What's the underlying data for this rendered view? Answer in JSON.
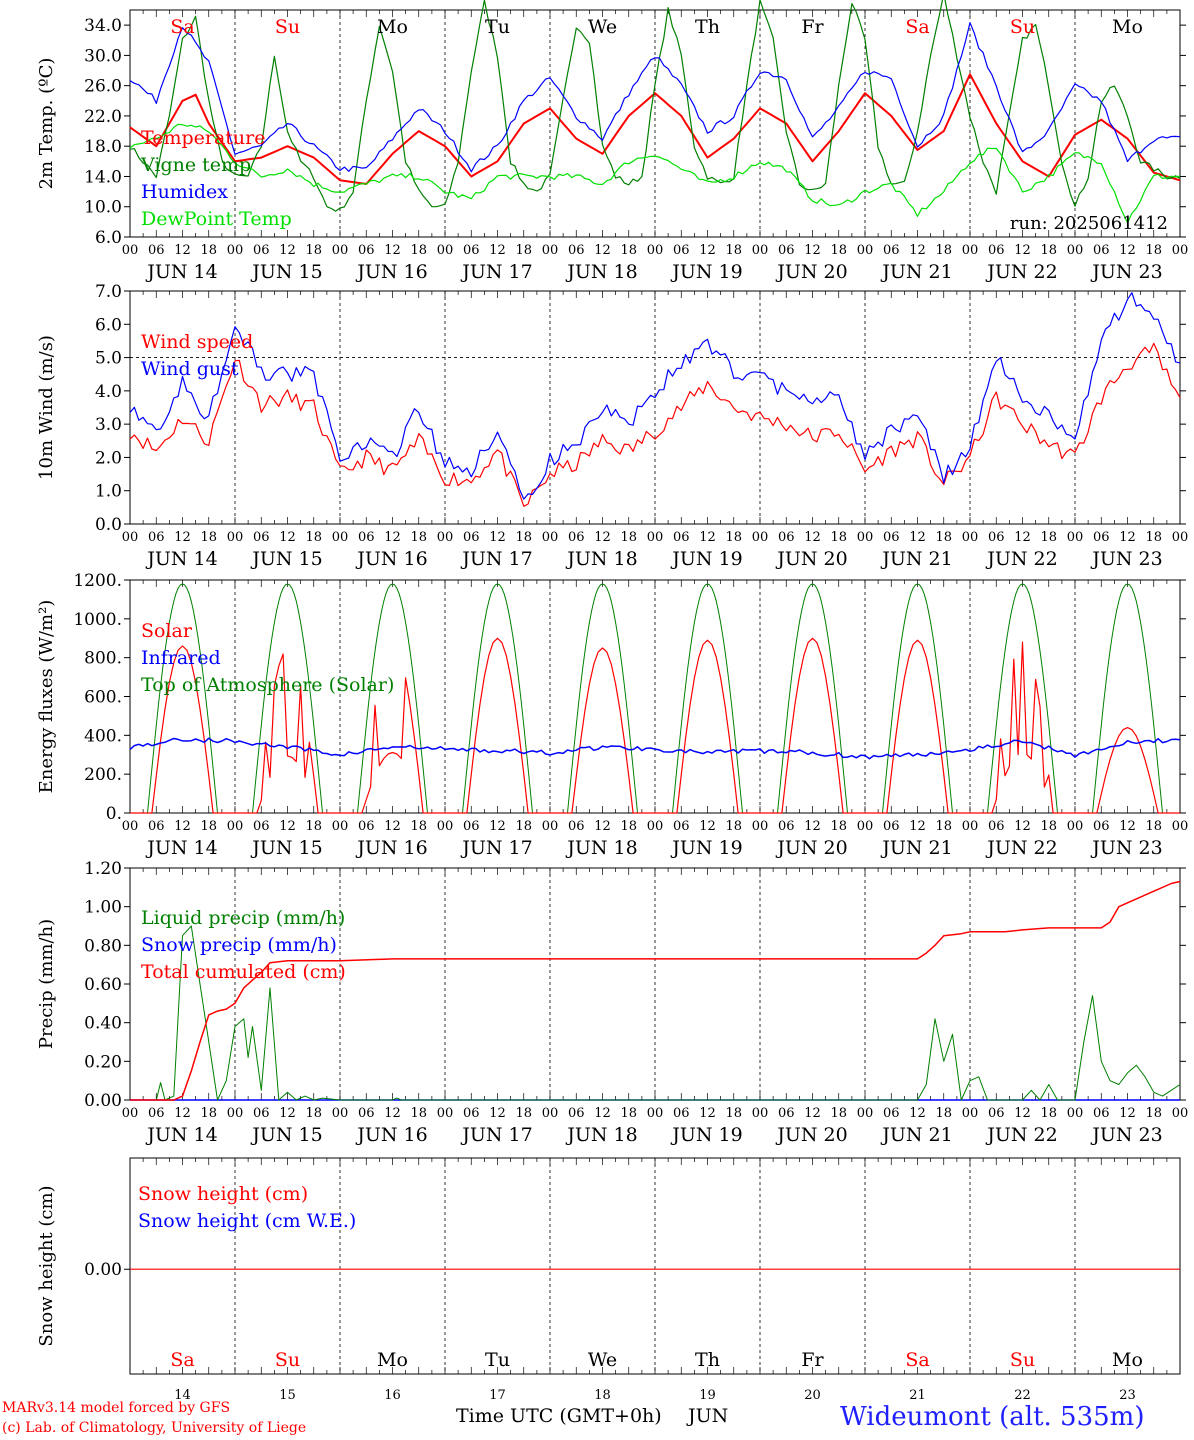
{
  "footer": {
    "credit_model": "MARv3.14 model forced by GFS",
    "credit_lab": "(c) Lab. of Climatology, University of Liege",
    "xaxis_title": "Time UTC (GMT+0h)",
    "month": "JUN",
    "station": "Wideumont (alt. 535m)"
  },
  "run_label": "run: 2025061412",
  "colors": {
    "red": "#ff0000",
    "green": "#008000",
    "blue": "#0000ff",
    "lime": "#00e000",
    "weekend": "#ff0000"
  },
  "days": [
    {
      "abbr": "Sa",
      "date": "JUN 14",
      "num": "14",
      "weekend": true
    },
    {
      "abbr": "Su",
      "date": "JUN 15",
      "num": "15",
      "weekend": true
    },
    {
      "abbr": "Mo",
      "date": "JUN 16",
      "num": "16",
      "weekend": false
    },
    {
      "abbr": "Tu",
      "date": "JUN 17",
      "num": "17",
      "weekend": false
    },
    {
      "abbr": "We",
      "date": "JUN 18",
      "num": "18",
      "weekend": false
    },
    {
      "abbr": "Th",
      "date": "JUN 19",
      "num": "19",
      "weekend": false
    },
    {
      "abbr": "Fr",
      "date": "JUN 20",
      "num": "20",
      "weekend": false
    },
    {
      "abbr": "Sa",
      "date": "JUN 21",
      "num": "21",
      "weekend": true
    },
    {
      "abbr": "Su",
      "date": "JUN 22",
      "num": "22",
      "weekend": true
    },
    {
      "abbr": "Mo",
      "date": "JUN 23",
      "num": "23",
      "weekend": false
    }
  ],
  "hour_ticks": [
    "00",
    "06",
    "12",
    "18"
  ],
  "chart_data": [
    {
      "type": "line",
      "ylabel": "2m Temp. (ºC)",
      "ylim": [
        6,
        36
      ],
      "yticks": [
        "6.0",
        "10.0",
        "14.0",
        "18.0",
        "22.0",
        "26.0",
        "30.0",
        "34.0"
      ],
      "x_unit": "hours since JUN 14 00 UTC",
      "series": [
        {
          "name": "Temperature",
          "color": "#ff0000",
          "width": 2,
          "x": [
            0,
            6,
            12,
            15,
            18,
            24,
            30,
            36,
            42,
            48,
            54,
            60,
            66,
            72,
            78,
            84,
            90,
            96,
            102,
            108,
            114,
            120,
            126,
            132,
            138,
            144,
            150,
            156,
            162,
            168,
            174,
            180,
            186,
            192,
            198,
            204,
            210,
            216,
            222,
            228,
            234,
            240
          ],
          "y": [
            20.5,
            18,
            24,
            24.8,
            21,
            16,
            16.5,
            18,
            16.5,
            13.5,
            13,
            17,
            20,
            18,
            14,
            16,
            21,
            23,
            19,
            17,
            22,
            25,
            22,
            16.5,
            19,
            23,
            21,
            16,
            20,
            25,
            22,
            17.5,
            20,
            27.5,
            21,
            16,
            14,
            19.5,
            21.5,
            19,
            14.5,
            13.5
          ]
        },
        {
          "name": "Vigne temp",
          "color": "#008000",
          "width": 1.2,
          "x": [
            0,
            3,
            6,
            9,
            12,
            15,
            18,
            21,
            24,
            27,
            30,
            33,
            36,
            39,
            42,
            45,
            48,
            51,
            54,
            57,
            60,
            63,
            66,
            69,
            72,
            75,
            78,
            81,
            84,
            87,
            90,
            93,
            96,
            99,
            102,
            105,
            108,
            111,
            114,
            117,
            120,
            123,
            126,
            129,
            132,
            135,
            138,
            141,
            144,
            147,
            150,
            153,
            156,
            159,
            162,
            165,
            168,
            171,
            174,
            177,
            180,
            183,
            186,
            189,
            192,
            195,
            198,
            201,
            204,
            207,
            210,
            213,
            216,
            219,
            222,
            225,
            228,
            231,
            234,
            237,
            240
          ],
          "y": [
            18,
            16,
            14,
            22,
            32,
            35,
            24,
            16,
            14,
            14,
            18,
            30,
            20,
            16,
            14,
            10,
            9.5,
            12,
            24,
            34,
            28,
            16,
            12,
            10,
            10,
            16,
            28,
            37,
            30,
            16,
            13,
            12,
            14,
            24,
            34,
            32,
            18,
            14,
            13,
            14,
            26,
            36,
            30,
            18,
            14,
            13,
            14,
            26,
            37,
            32,
            20,
            13,
            12,
            13,
            26,
            37,
            32,
            18,
            13,
            13,
            20,
            30,
            38,
            30,
            22,
            16,
            12,
            22,
            32,
            34,
            26,
            16,
            10,
            14,
            24,
            26,
            22,
            16,
            15,
            14,
            14
          ]
        },
        {
          "name": "Humidex",
          "color": "#0000ff",
          "width": 1.2,
          "x": [
            0,
            6,
            12,
            18,
            24,
            30,
            36,
            42,
            48,
            54,
            60,
            66,
            72,
            78,
            84,
            90,
            96,
            102,
            108,
            114,
            120,
            126,
            132,
            138,
            144,
            150,
            156,
            162,
            168,
            174,
            180,
            186,
            192,
            198,
            204,
            210,
            216,
            222,
            228,
            234,
            240
          ],
          "y": [
            27,
            24,
            34,
            29,
            17,
            18,
            21,
            18,
            15,
            15,
            19,
            23,
            20,
            15,
            18,
            24,
            27,
            22,
            19,
            25,
            30,
            26,
            20,
            22,
            28,
            27,
            19,
            23,
            28,
            27,
            18,
            22,
            34,
            26,
            17,
            20,
            26,
            24,
            16,
            19,
            19
          ]
        },
        {
          "name": "DewPoint Temp",
          "color": "#00e000",
          "width": 1.2,
          "x": [
            0,
            6,
            12,
            18,
            24,
            30,
            36,
            42,
            48,
            54,
            60,
            66,
            72,
            78,
            84,
            90,
            96,
            102,
            108,
            114,
            120,
            126,
            132,
            138,
            144,
            150,
            156,
            162,
            168,
            174,
            180,
            186,
            192,
            198,
            204,
            210,
            216,
            222,
            228,
            234,
            240
          ],
          "y": [
            18,
            19,
            21,
            20,
            16,
            14,
            15,
            13,
            12,
            13,
            14,
            14,
            12,
            11,
            14,
            14,
            14,
            14,
            13,
            16,
            17,
            15,
            13,
            14,
            16,
            15,
            11,
            10,
            12,
            13,
            9,
            12,
            16,
            18,
            12,
            14,
            17,
            16,
            8,
            14,
            14
          ]
        }
      ],
      "legend": [
        "Temperature",
        "Vigne temp",
        "Humidex",
        "DewPoint Temp"
      ]
    },
    {
      "type": "line",
      "ylabel": "10m Wind (m/s)",
      "ylim": [
        0,
        7
      ],
      "yticks": [
        "0.0",
        "1.0",
        "2.0",
        "3.0",
        "4.0",
        "5.0",
        "6.0",
        "7.0"
      ],
      "ref_line": 5,
      "series": [
        {
          "name": "Wind speed",
          "color": "#ff0000",
          "width": 1.2,
          "x": [
            0,
            6,
            12,
            18,
            24,
            30,
            36,
            42,
            48,
            54,
            60,
            66,
            72,
            78,
            84,
            90,
            96,
            102,
            108,
            114,
            120,
            126,
            132,
            138,
            144,
            150,
            156,
            162,
            168,
            174,
            180,
            186,
            192,
            198,
            204,
            210,
            216,
            222,
            228,
            234,
            240
          ],
          "y": [
            2.8,
            2.2,
            3.2,
            2.5,
            5.0,
            3.6,
            3.8,
            3.5,
            1.5,
            2.0,
            1.6,
            2.5,
            1.4,
            1.3,
            2.2,
            0.5,
            1.5,
            1.8,
            2.5,
            2.2,
            2.8,
            3.5,
            4.2,
            3.5,
            3.2,
            3.0,
            2.6,
            2.8,
            1.6,
            2.2,
            2.6,
            1.2,
            2.0,
            3.8,
            3.0,
            2.4,
            2.0,
            3.8,
            4.8,
            5.2,
            3.7
          ]
        },
        {
          "name": "Wind gust",
          "color": "#0000ff",
          "width": 1.2,
          "x": [
            0,
            6,
            12,
            18,
            24,
            30,
            36,
            42,
            48,
            54,
            60,
            66,
            72,
            78,
            84,
            90,
            96,
            102,
            108,
            114,
            120,
            126,
            132,
            138,
            144,
            150,
            156,
            162,
            168,
            174,
            180,
            186,
            192,
            198,
            204,
            210,
            216,
            222,
            228,
            234,
            240
          ],
          "y": [
            3.6,
            2.8,
            4.2,
            3.2,
            6.1,
            4.5,
            4.5,
            4.5,
            2.0,
            2.4,
            2.0,
            3.5,
            1.8,
            1.6,
            2.8,
            0.6,
            1.9,
            2.4,
            3.4,
            3.0,
            4.0,
            4.8,
            5.4,
            4.6,
            4.4,
            4.0,
            3.6,
            3.8,
            2.0,
            2.8,
            3.4,
            1.4,
            2.4,
            5.0,
            3.8,
            3.2,
            2.5,
            5.5,
            6.8,
            6.2,
            4.8
          ]
        }
      ],
      "legend": [
        "Wind speed",
        "Wind gust"
      ]
    },
    {
      "type": "line",
      "ylabel": "Energy fluxes (W/m²)",
      "ylim": [
        0,
        1200
      ],
      "yticks": [
        "0.",
        "200.",
        "400.",
        "600.",
        "800.",
        "1000.",
        "1200."
      ],
      "series": [
        {
          "name": "Solar",
          "color": "#ff0000",
          "width": 1.2,
          "peaks": [
            860,
            840,
            890,
            900,
            850,
            890,
            900,
            890,
            880,
            440
          ]
        },
        {
          "name": "Infrared",
          "color": "#0000ff",
          "width": 1.5,
          "x": [
            0,
            12,
            24,
            36,
            48,
            60,
            72,
            84,
            96,
            108,
            120,
            132,
            144,
            156,
            168,
            180,
            192,
            204,
            216,
            228,
            240
          ],
          "y": [
            340,
            380,
            370,
            340,
            300,
            340,
            330,
            320,
            310,
            340,
            330,
            310,
            320,
            310,
            290,
            300,
            330,
            370,
            300,
            360,
            380
          ]
        },
        {
          "name": "Top of Atmosphere (Solar)",
          "color": "#008000",
          "width": 1.0,
          "peak": 1180
        }
      ],
      "legend": [
        "Solar",
        "Infrared",
        "Top of Atmosphere (Solar)"
      ]
    },
    {
      "type": "line",
      "ylabel": "Precip (mm/h)",
      "ylim": [
        0,
        1.2
      ],
      "yticks": [
        "0.00",
        "0.20",
        "0.40",
        "0.60",
        "0.80",
        "1.00",
        "1.20"
      ],
      "series": [
        {
          "name": "Liquid precip (mm/h)",
          "color": "#008000",
          "width": 1.0,
          "x": [
            0,
            6,
            7,
            8,
            10,
            12,
            14,
            16,
            18,
            20,
            22,
            24,
            26,
            27,
            28,
            30,
            32,
            34,
            36,
            38,
            40,
            42,
            44,
            48,
            60,
            61,
            62,
            72,
            180,
            182,
            184,
            186,
            188,
            190,
            192,
            194,
            196,
            198,
            204,
            206,
            208,
            210,
            212,
            216,
            218,
            220,
            222,
            224,
            226,
            228,
            230,
            232,
            234,
            236,
            238,
            240
          ],
          "y": [
            0,
            0,
            0.09,
            0,
            0.02,
            0.85,
            0.9,
            0.6,
            0.3,
            0,
            0.1,
            0.38,
            0.42,
            0.22,
            0.38,
            0.05,
            0.58,
            0,
            0.04,
            0,
            0.02,
            0,
            0.01,
            0,
            0,
            0.01,
            0,
            0,
            0,
            0.08,
            0.42,
            0.2,
            0.34,
            0,
            0.1,
            0.12,
            0,
            0,
            0,
            0.05,
            0,
            0.08,
            0,
            0,
            0.3,
            0.54,
            0.2,
            0.1,
            0.08,
            0.14,
            0.18,
            0.12,
            0.04,
            0.02,
            0.05,
            0.08
          ]
        },
        {
          "name": "Snow precip (mm/h)",
          "color": "#0000ff",
          "width": 1.0
        },
        {
          "name": "Total cumulated (cm)",
          "color": "#ff0000",
          "width": 1.5,
          "x": [
            0,
            10,
            12,
            14,
            16,
            18,
            20,
            22,
            24,
            26,
            28,
            30,
            32,
            36,
            48,
            60,
            72,
            180,
            182,
            184,
            186,
            190,
            192,
            200,
            204,
            210,
            216,
            222,
            224,
            226,
            230,
            234,
            238,
            240
          ],
          "y": [
            0,
            0,
            0.02,
            0.15,
            0.3,
            0.44,
            0.46,
            0.47,
            0.5,
            0.58,
            0.62,
            0.66,
            0.71,
            0.72,
            0.72,
            0.73,
            0.73,
            0.73,
            0.76,
            0.8,
            0.85,
            0.86,
            0.87,
            0.87,
            0.88,
            0.89,
            0.89,
            0.89,
            0.92,
            1.0,
            1.04,
            1.08,
            1.12,
            1.13
          ]
        }
      ],
      "legend": [
        "Liquid precip (mm/h)",
        "Snow precip (mm/h)",
        "Total cumulated (cm)"
      ]
    },
    {
      "type": "line",
      "ylabel": "Snow height (cm)",
      "yticks": [
        "0.00"
      ],
      "series": [
        {
          "name": "Snow height (cm)",
          "color": "#ff0000",
          "width": 1.2,
          "x": [
            0,
            240
          ],
          "y": [
            0,
            0
          ]
        },
        {
          "name": "Snow height (cm W.E.)",
          "color": "#0000ff",
          "width": 1.2
        }
      ],
      "legend": [
        "Snow height (cm)",
        "Snow height (cm W.E.)"
      ]
    }
  ]
}
